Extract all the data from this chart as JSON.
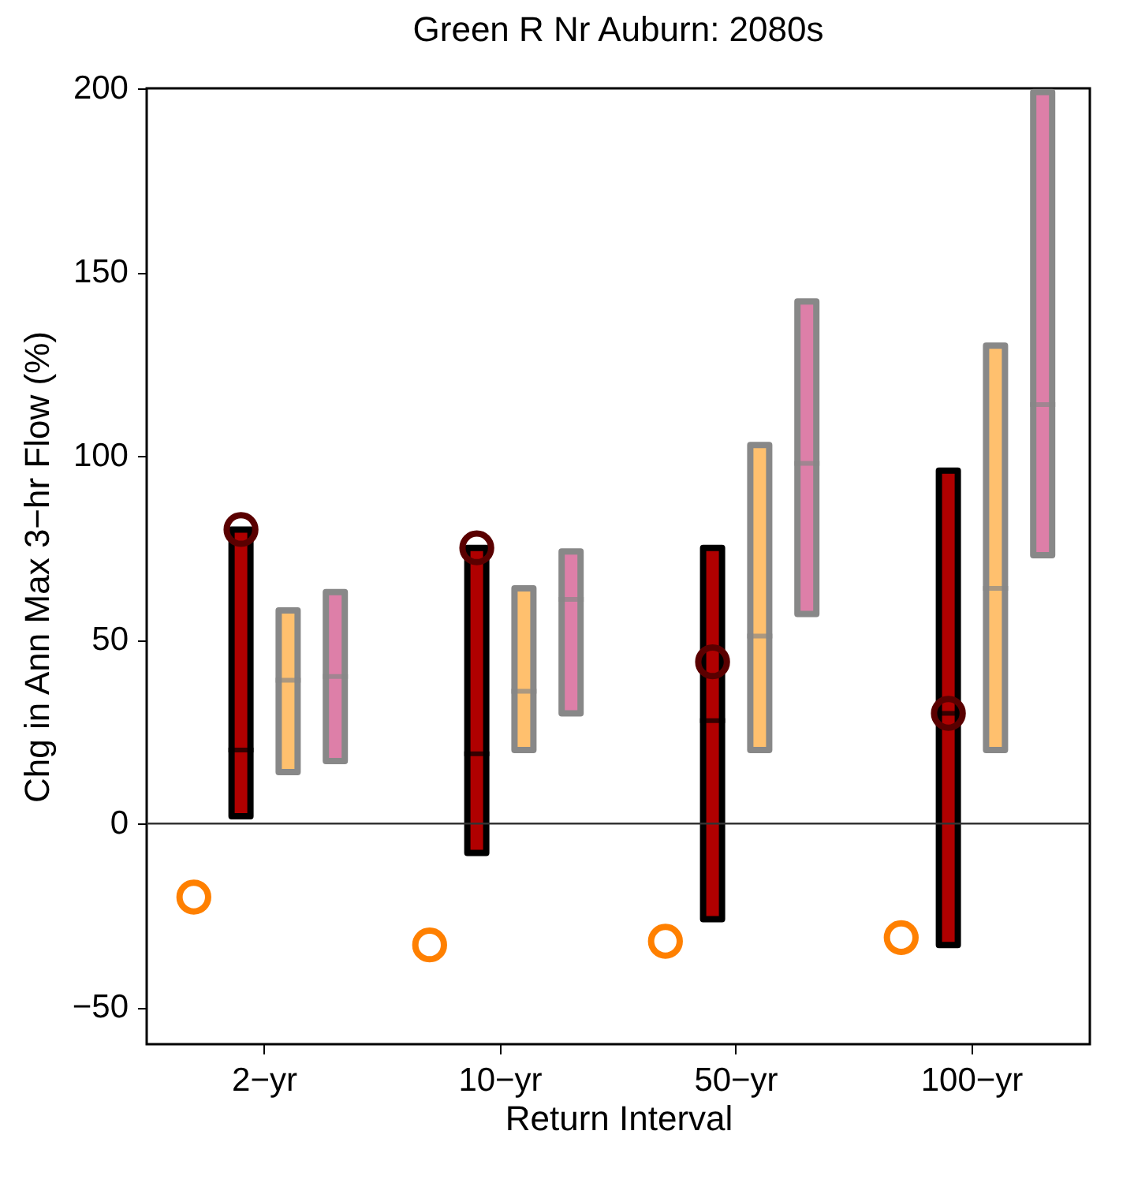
{
  "chart_data": {
    "type": "box",
    "title": "Green R Nr Auburn: 2080s",
    "xlabel": "Return Interval",
    "ylabel": "Chg in Ann Max 3−hr Flow (%)",
    "categories": [
      "2−yr",
      "10−yr",
      "50−yr",
      "100−yr"
    ],
    "ylim": [
      -60,
      200
    ],
    "yticks": [
      -50,
      0,
      50,
      100,
      150,
      200
    ],
    "grid": false,
    "legend": false,
    "marker": "circle",
    "ref_lines": [
      {
        "axis": "y",
        "value": 0,
        "color": "#333333"
      }
    ],
    "series": [
      {
        "type": "scatter",
        "color": "#ff8000",
        "values": [
          -20,
          -33,
          -32,
          -31
        ]
      },
      {
        "type": "box",
        "color": "#b00000",
        "boxes": [
          {
            "low": 2,
            "q1": 2,
            "median": 20,
            "q3": 80,
            "high": 80
          },
          {
            "low": -8,
            "q1": -8,
            "median": 19,
            "q3": 75,
            "high": 75
          },
          {
            "low": -26,
            "q1": -26,
            "median": 28,
            "q3": 75,
            "high": 75
          },
          {
            "low": -33,
            "q1": -33,
            "median": 30,
            "q3": 96,
            "high": 96
          }
        ]
      },
      {
        "type": "scatter",
        "color": "#5a0000",
        "values": [
          80,
          75,
          44,
          30
        ]
      },
      {
        "type": "box",
        "color": "#ffc06e",
        "boxes": [
          {
            "low": 14,
            "q1": 14,
            "median": 39,
            "q3": 58,
            "high": 58
          },
          {
            "low": 20,
            "q1": 20,
            "median": 36,
            "q3": 64,
            "high": 64
          },
          {
            "low": 20,
            "q1": 20,
            "median": 51,
            "q3": 103,
            "high": 103
          },
          {
            "low": 20,
            "q1": 20,
            "median": 64,
            "q3": 130,
            "high": 130
          }
        ]
      },
      {
        "type": "box",
        "color": "#dd7fa8",
        "boxes": [
          {
            "low": 17,
            "q1": 17,
            "median": 40,
            "q3": 63,
            "high": 63
          },
          {
            "low": 30,
            "q1": 30,
            "median": 61,
            "q3": 74,
            "high": 74
          },
          {
            "low": 57,
            "q1": 57,
            "median": 98,
            "q3": 142,
            "high": 142
          },
          {
            "low": 73,
            "q1": 73,
            "median": 114,
            "q3": 199,
            "high": 199
          }
        ]
      }
    ]
  }
}
